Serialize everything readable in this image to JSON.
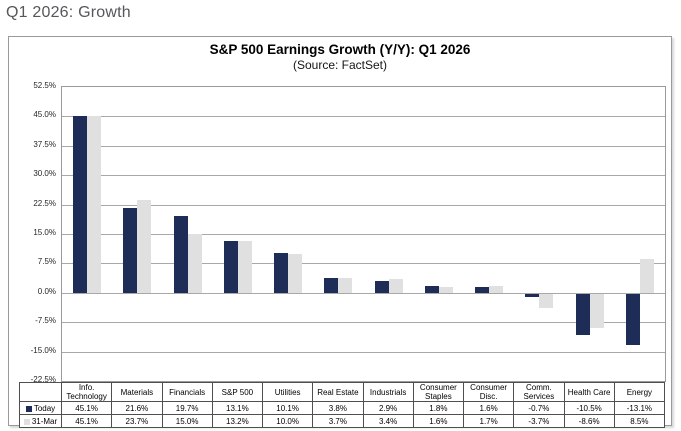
{
  "page": {
    "title": "Q1 2026: Growth"
  },
  "chart_data": {
    "type": "bar",
    "title": "S&P 500 Earnings Growth (Y/Y): Q1 2026",
    "subtitle": "(Source: FactSet)",
    "categories": [
      "Info. Technology",
      "Materials",
      "Financials",
      "S&P 500",
      "Utilities",
      "Real Estate",
      "Industrials",
      "Consumer Staples",
      "Consumer Disc.",
      "Comm. Services",
      "Health Care",
      "Energy"
    ],
    "series": [
      {
        "name": "Today",
        "color": "#1e2d58",
        "values": [
          45.1,
          21.6,
          19.7,
          13.1,
          10.1,
          3.8,
          2.9,
          1.8,
          1.6,
          -0.7,
          -10.5,
          -13.1
        ]
      },
      {
        "name": "31-Mar",
        "color": "#e0e0e0",
        "values": [
          45.1,
          23.7,
          15.0,
          13.2,
          10.0,
          3.7,
          3.4,
          1.6,
          1.7,
          -3.7,
          -8.6,
          8.5
        ]
      }
    ],
    "ylim": [
      -22.5,
      52.5
    ],
    "ytick_step": 7.5,
    "yticks": [
      "52.5%",
      "45.0%",
      "37.5%",
      "30.0%",
      "22.5%",
      "15.0%",
      "7.5%",
      "0.0%",
      "-7.5%",
      "-15.0%",
      "-22.5%"
    ],
    "value_suffix": "%",
    "grid": "horizontal",
    "legend_position": "table-left-column",
    "colors": {
      "gridline": "#a8a8a8",
      "plot_border": "#9a9a9a",
      "panel_border": "#9a9a9a",
      "page_title_text": "#56575a",
      "table_border": "#4f4f4f"
    }
  }
}
